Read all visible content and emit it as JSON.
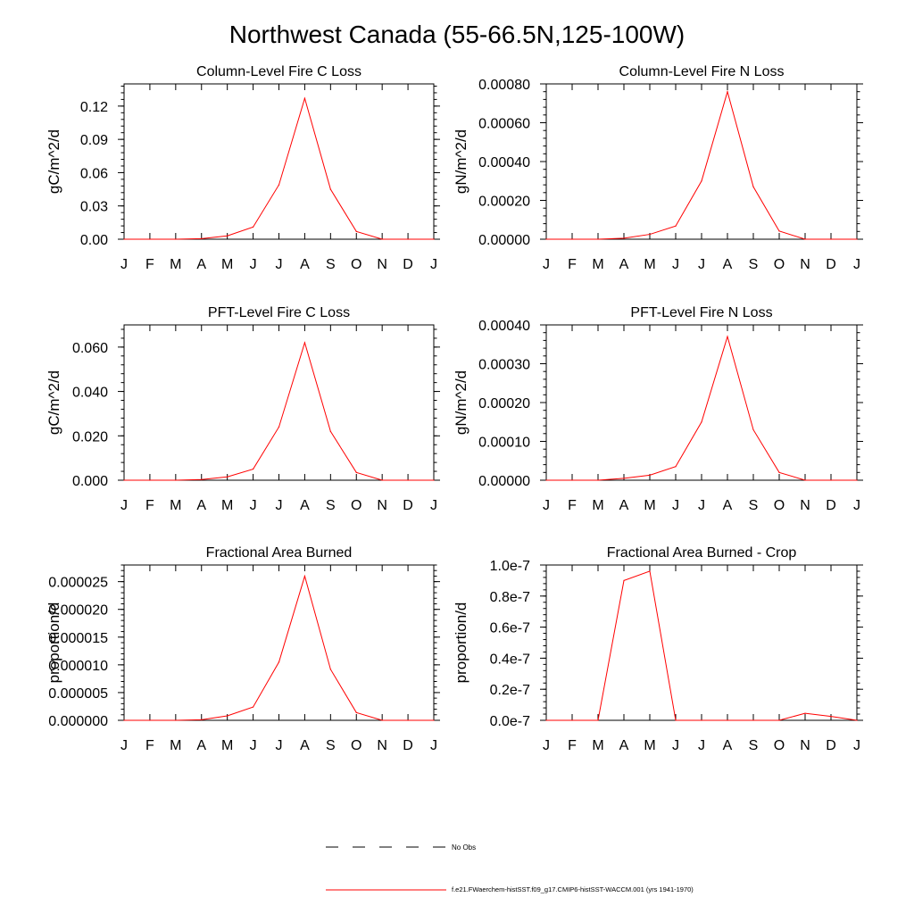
{
  "title": "Northwest Canada (55-66.5N,125-100W)",
  "months": [
    "J",
    "F",
    "M",
    "A",
    "M",
    "J",
    "J",
    "A",
    "S",
    "O",
    "N",
    "D",
    "J"
  ],
  "colors": {
    "model_line": "#ff0000",
    "obs_line": "#000000",
    "axis": "#000000"
  },
  "legend": {
    "obs_label": "No Obs",
    "model_label": "f.e21.FWaerchem-histSST.f09_g17.CMIP6-histSST-WACCM.001 (yrs 1941-1970)"
  },
  "chart_data": [
    {
      "type": "line",
      "title": "Column-Level Fire C Loss",
      "ylabel": "gC/m^2/d",
      "ylim": [
        0,
        0.14
      ],
      "yticks": [
        0,
        0.03,
        0.06,
        0.09,
        0.12
      ],
      "ytick_labels": [
        "0.00",
        "0.03",
        "0.06",
        "0.09",
        "0.12"
      ],
      "series": [
        {
          "values": [
            0,
            0,
            0,
            0.0005,
            0.003,
            0.011,
            0.049,
            0.127,
            0.045,
            0.007,
            0,
            0,
            0
          ]
        }
      ]
    },
    {
      "type": "line",
      "title": "Column-Level Fire N Loss",
      "ylabel": "gN/m^2/d",
      "ylim": [
        0,
        0.0008
      ],
      "yticks": [
        0,
        0.0002,
        0.0004,
        0.0006,
        0.0008
      ],
      "ytick_labels": [
        "0.00000",
        "0.00020",
        "0.00040",
        "0.00060",
        "0.00080"
      ],
      "series": [
        {
          "values": [
            0,
            0,
            0,
            5e-06,
            2.5e-05,
            6.8e-05,
            0.0003,
            0.00076,
            0.00027,
            4.2e-05,
            0,
            0,
            0
          ]
        }
      ]
    },
    {
      "type": "line",
      "title": "PFT-Level Fire C Loss",
      "ylabel": "gC/m^2/d",
      "ylim": [
        0,
        0.07
      ],
      "yticks": [
        0,
        0.02,
        0.04,
        0.06
      ],
      "ytick_labels": [
        "0.000",
        "0.020",
        "0.040",
        "0.060"
      ],
      "series": [
        {
          "values": [
            0,
            0,
            0,
            0.0003,
            0.0015,
            0.005,
            0.024,
            0.062,
            0.022,
            0.0035,
            0,
            0,
            0
          ]
        }
      ]
    },
    {
      "type": "line",
      "title": "PFT-Level Fire N Loss",
      "ylabel": "gN/m^2/d",
      "ylim": [
        0,
        0.0004
      ],
      "yticks": [
        0,
        0.0001,
        0.0002,
        0.0003,
        0.0004
      ],
      "ytick_labels": [
        "0.00000",
        "0.00010",
        "0.00020",
        "0.00030",
        "0.00040"
      ],
      "series": [
        {
          "values": [
            0,
            0,
            0,
            5e-06,
            1.3e-05,
            3.5e-05,
            0.00015,
            0.00037,
            0.00013,
            2e-05,
            0,
            0,
            0
          ]
        }
      ]
    },
    {
      "type": "line",
      "title": "Fractional Area Burned",
      "ylabel": "proportion/d",
      "ylim": [
        0,
        2.8e-05
      ],
      "yticks": [
        0,
        5e-06,
        1e-05,
        1.5e-05,
        2e-05,
        2.5e-05
      ],
      "ytick_labels": [
        "0.000000",
        "0.000005",
        "0.000010",
        "0.000015",
        "0.000020",
        "0.000025"
      ],
      "series": [
        {
          "values": [
            0,
            0,
            0,
            1e-07,
            8e-07,
            2.4e-06,
            1.05e-05,
            2.6e-05,
            9.2e-06,
            1.4e-06,
            0,
            0,
            0
          ]
        }
      ]
    },
    {
      "type": "line",
      "title": "Fractional Area Burned - Crop",
      "ylabel": "proportion/d",
      "ylim": [
        0,
        1e-07
      ],
      "yticks": [
        0,
        2e-08,
        4e-08,
        6e-08,
        8e-08,
        1e-07
      ],
      "ytick_labels": [
        "0.0e-7",
        "0.2e-7",
        "0.4e-7",
        "0.6e-7",
        "0.8e-7",
        "1.0e-7"
      ],
      "series": [
        {
          "values": [
            0,
            0,
            0,
            9e-08,
            9.6e-08,
            0,
            0,
            0,
            0,
            0,
            4.5e-09,
            2.5e-09,
            0
          ]
        }
      ]
    }
  ]
}
